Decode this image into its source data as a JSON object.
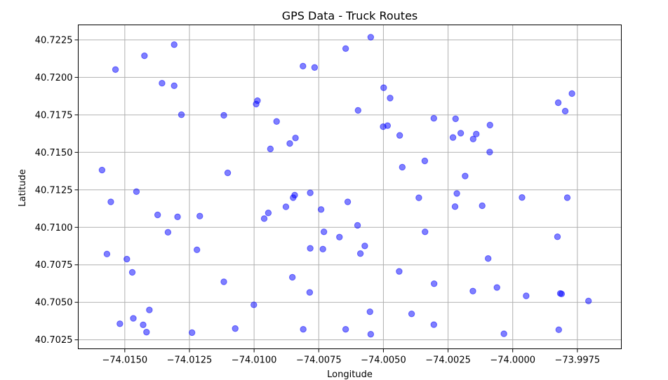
{
  "chart_data": {
    "type": "scatter",
    "title": "GPS Data - Truck Routes",
    "xlabel": "Longitude",
    "ylabel": "Latitude",
    "xlim": [
      -74.0168,
      -73.9958
    ],
    "ylim": [
      40.7019,
      40.7235
    ],
    "xticks": [
      -74.015,
      -74.0125,
      -74.01,
      -74.0075,
      -74.005,
      -74.0025,
      -74.0,
      -73.9975
    ],
    "xtick_labels": [
      "−74.0150",
      "−74.0125",
      "−74.0100",
      "−74.0075",
      "−74.0050",
      "−74.0025",
      "−74.0000",
      "−73.9975"
    ],
    "yticks": [
      40.7025,
      40.705,
      40.7075,
      40.71,
      40.7125,
      40.715,
      40.7175,
      40.72,
      40.7225
    ],
    "ytick_labels": [
      "40.7025",
      "40.7050",
      "40.7075",
      "40.7100",
      "40.7125",
      "40.7150",
      "40.7175",
      "40.7200",
      "40.7225"
    ],
    "grid": true,
    "marker_color": "#0000ff",
    "marker_alpha": 0.5,
    "points": [
      [
        -74.01536,
        40.72052
      ],
      [
        -74.01424,
        40.72144
      ],
      [
        -74.01309,
        40.72218
      ],
      [
        -74.01356,
        40.71961
      ],
      [
        -74.01309,
        40.71944
      ],
      [
        -74.01588,
        40.71382
      ],
      [
        -74.01281,
        40.71751
      ],
      [
        -74.01117,
        40.71747
      ],
      [
        -74.00987,
        40.71845
      ],
      [
        -74.00992,
        40.71822
      ],
      [
        -74.00913,
        40.71706
      ],
      [
        -74.00937,
        40.71523
      ],
      [
        -74.00862,
        40.71559
      ],
      [
        -74.0084,
        40.71596
      ],
      [
        -74.00811,
        40.72075
      ],
      [
        -74.00766,
        40.72066
      ],
      [
        -74.00646,
        40.72192
      ],
      [
        -74.00549,
        40.72268
      ],
      [
        -74.00499,
        40.71931
      ],
      [
        -74.00474,
        40.71862
      ],
      [
        -74.00598,
        40.7178
      ],
      [
        -74.00501,
        40.71671
      ],
      [
        -74.00484,
        40.71678
      ],
      [
        -74.00437,
        40.71613
      ],
      [
        -74.00305,
        40.71727
      ],
      [
        -74.00221,
        40.71724
      ],
      [
        -74.00153,
        40.71589
      ],
      [
        -74.00141,
        40.71622
      ],
      [
        -74.00088,
        40.71682
      ],
      [
        -74.00201,
        40.71628
      ],
      [
        -74.00231,
        40.71599
      ],
      [
        -74.00089,
        40.71502
      ],
      [
        -74.00427,
        40.71401
      ],
      [
        -74.0034,
        40.71443
      ],
      [
        -74.00184,
        40.71342
      ],
      [
        -74.01554,
        40.7117
      ],
      [
        -74.01455,
        40.71238
      ],
      [
        -74.01373,
        40.71083
      ],
      [
        -74.01296,
        40.7107
      ],
      [
        -74.0121,
        40.71075
      ],
      [
        -74.01333,
        40.70967
      ],
      [
        -74.01102,
        40.71363
      ],
      [
        -74.00843,
        40.71215
      ],
      [
        -74.00849,
        40.71198
      ],
      [
        -74.00783,
        40.7123
      ],
      [
        -74.00741,
        40.71119
      ],
      [
        -74.00877,
        40.71137
      ],
      [
        -74.00945,
        40.71096
      ],
      [
        -74.00961,
        40.71058
      ],
      [
        -74.00638,
        40.7117
      ],
      [
        -74.0073,
        40.7097
      ],
      [
        -74.006,
        40.71013
      ],
      [
        -74.0067,
        40.70935
      ],
      [
        -74.00572,
        40.70876
      ],
      [
        -74.00589,
        40.70825
      ],
      [
        -74.00783,
        40.7086
      ],
      [
        -74.00734,
        40.70855
      ],
      [
        -74.00363,
        40.71197
      ],
      [
        -74.00216,
        40.71226
      ],
      [
        -74.00223,
        40.71138
      ],
      [
        -74.00118,
        40.71144
      ],
      [
        -73.99964,
        40.71199
      ],
      [
        -73.99789,
        40.71198
      ],
      [
        -73.99827,
        40.70937
      ],
      [
        -74.00339,
        40.7097
      ],
      [
        -74.01569,
        40.70822
      ],
      [
        -74.01492,
        40.70788
      ],
      [
        -74.01471,
        40.707
      ],
      [
        -74.01221,
        40.7085
      ],
      [
        -74.01117,
        40.70637
      ],
      [
        -74.00852,
        40.70667
      ],
      [
        -74.00785,
        40.70566
      ],
      [
        -74.01001,
        40.70483
      ],
      [
        -74.00552,
        40.70437
      ],
      [
        -74.00439,
        40.70706
      ],
      [
        -74.00304,
        40.70624
      ],
      [
        -74.00391,
        40.70423
      ],
      [
        -74.00154,
        40.70575
      ],
      [
        -74.00095,
        40.70792
      ],
      [
        -74.00061,
        40.70599
      ],
      [
        -73.99948,
        40.70543
      ],
      [
        -73.99816,
        40.70559
      ],
      [
        -73.99811,
        40.70556
      ],
      [
        -73.99707,
        40.70509
      ],
      [
        -74.01519,
        40.70357
      ],
      [
        -74.01467,
        40.70393
      ],
      [
        -74.01429,
        40.7035
      ],
      [
        -74.01405,
        40.70449
      ],
      [
        -74.01416,
        40.70301
      ],
      [
        -74.0124,
        40.70298
      ],
      [
        -74.01073,
        40.70325
      ],
      [
        -74.0081,
        40.7032
      ],
      [
        -74.00646,
        40.7032
      ],
      [
        -74.00549,
        40.70287
      ],
      [
        -74.00305,
        40.70351
      ],
      [
        -74.00034,
        40.7029
      ],
      [
        -73.99822,
        40.70317
      ],
      [
        -73.99824,
        40.71831
      ],
      [
        -73.99771,
        40.71892
      ],
      [
        -73.99797,
        40.71775
      ]
    ]
  }
}
